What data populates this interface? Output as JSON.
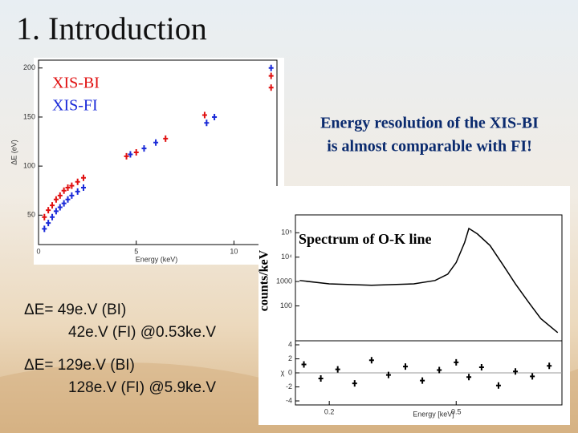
{
  "title": "1. Introduction",
  "resolution_plot": {
    "type": "scatter",
    "xlabel": "Energy (keV)",
    "ylabel": "ΔE (eV)",
    "xlim": [
      0,
      12.2
    ],
    "ylim": [
      20,
      208
    ],
    "xticks": [
      0,
      5,
      10
    ],
    "yticks": [
      50,
      100,
      150,
      200
    ],
    "series": [
      {
        "name": "XIS-BI",
        "color": "#e01010",
        "x": [
          0.3,
          0.5,
          0.7,
          0.9,
          1.1,
          1.3,
          1.5,
          1.7,
          2.0,
          2.3,
          4.5,
          5.0,
          6.5,
          8.5,
          11.9,
          11.9
        ],
        "values": [
          48,
          55,
          60,
          66,
          70,
          75,
          78,
          80,
          84,
          88,
          110,
          114,
          128,
          152,
          180,
          192
        ]
      },
      {
        "name": "XIS-FI",
        "color": "#1a2ad8",
        "x": [
          0.3,
          0.5,
          0.7,
          0.9,
          1.1,
          1.3,
          1.5,
          1.7,
          2.0,
          2.3,
          4.7,
          5.4,
          6.0,
          8.6,
          9.0,
          11.9
        ],
        "values": [
          36,
          42,
          48,
          54,
          58,
          62,
          66,
          70,
          74,
          78,
          112,
          118,
          124,
          144,
          150,
          200
        ]
      }
    ]
  },
  "note": [
    "Energy resolution of the XIS-BI",
    "is almost comparable with FI!"
  ],
  "spectrum_plot": {
    "title": "Spectrum of O-K line",
    "ylabel": "counts/keV",
    "xlabel": "Energy [keV]",
    "xlim": [
      0.12,
      0.75
    ],
    "xticks": [
      0.2,
      0.5
    ],
    "upper": {
      "type": "line",
      "log_scale": true,
      "ylim": [
        3.7,
        540000
      ],
      "yticks": [
        100,
        1000,
        {
          "value": 10000,
          "label": "10⁴"
        },
        {
          "value": 100000,
          "label": "10⁵"
        }
      ],
      "series": [
        {
          "color": "#000000",
          "x": [
            0.13,
            0.2,
            0.3,
            0.4,
            0.45,
            0.48,
            0.5,
            0.52,
            0.53,
            0.55,
            0.58,
            0.61,
            0.64,
            0.67,
            0.7,
            0.74
          ],
          "values": [
            1100,
            800,
            700,
            800,
            1100,
            2000,
            6000,
            40000,
            150000,
            90000,
            30000,
            5000,
            800,
            150,
            30,
            8
          ]
        }
      ]
    },
    "lower": {
      "type": "scatter",
      "ylabel": "χ",
      "ylim": [
        -4.57,
        4.57
      ],
      "yticks": [
        -4,
        -2,
        0,
        2,
        4
      ],
      "series": [
        {
          "color": "#000000",
          "x": [
            0.14,
            0.18,
            0.22,
            0.26,
            0.3,
            0.34,
            0.38,
            0.42,
            0.46,
            0.5,
            0.53,
            0.56,
            0.6,
            0.64,
            0.68,
            0.72
          ],
          "values": [
            1.2,
            -0.8,
            0.5,
            -1.5,
            1.8,
            -0.3,
            0.9,
            -1.1,
            0.4,
            1.5,
            -0.6,
            0.8,
            -1.8,
            0.2,
            -0.5,
            1.0
          ]
        }
      ]
    }
  },
  "results": [
    [
      "ΔE= 49e.V (BI)",
      "42e.V (FI)  @0.53ke.V"
    ],
    [
      "ΔE= 129e.V (BI)",
      "128e.V (FI)  @5.9ke.V"
    ]
  ]
}
